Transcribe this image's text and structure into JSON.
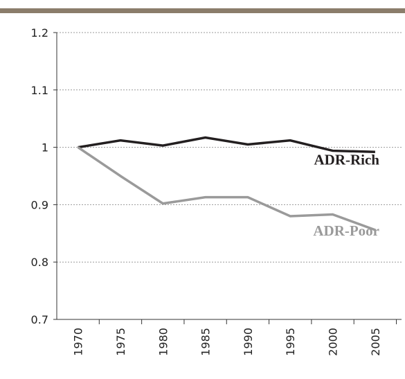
{
  "chart_data": {
    "type": "line",
    "categories": [
      "1970",
      "1975",
      "1980",
      "1985",
      "1990",
      "1995",
      "2000",
      "2005"
    ],
    "series": [
      {
        "name": "ADR-Rich",
        "color": "#231f20",
        "values": [
          1.0,
          1.012,
          1.003,
          1.017,
          1.005,
          1.012,
          0.994,
          0.992
        ]
      },
      {
        "name": "ADR-Poor",
        "color": "#9a9a9a",
        "values": [
          1.0,
          0.95,
          0.902,
          0.913,
          0.913,
          0.88,
          0.883,
          0.856
        ]
      }
    ],
    "ylim": [
      0.7,
      1.2
    ],
    "yticks": [
      0.7,
      0.8,
      0.9,
      1,
      1.1,
      1.2
    ],
    "grid": true
  }
}
